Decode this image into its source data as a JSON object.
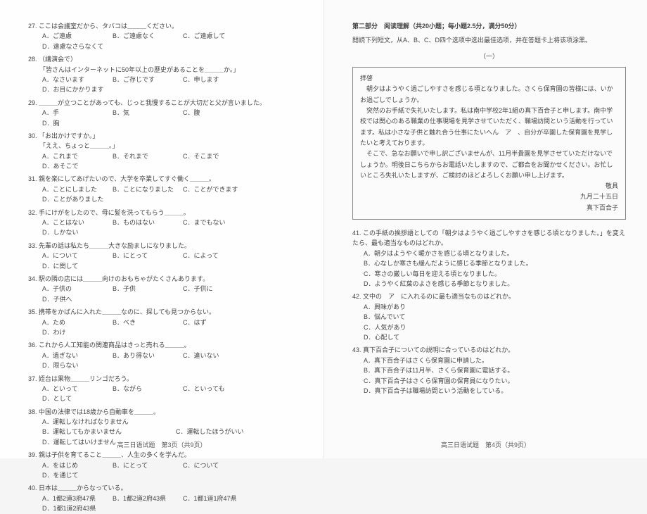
{
  "left": {
    "questions": [
      {
        "num": "27.",
        "stem": "ここは会議室だから、タバコは＿＿＿ください。",
        "opts": [
          "A．ご遠慮",
          "B．ご遠慮なく",
          "C．ご遠慮して",
          "D．遠慮なさらなくて"
        ]
      },
      {
        "num": "28.",
        "stem": "（講演会で）",
        "line2": "「皆さんはインターネットに50年以上の歴史があることを＿＿＿か。」",
        "opts": [
          "A．なさいます",
          "B．ご存じです",
          "C．申します",
          "D．お目にかかります"
        ]
      },
      {
        "num": "29.",
        "stem": "＿＿＿が立つことがあっても、じっと我慢することが大切だと父が言いました。",
        "opts": [
          "A．手",
          "B．気",
          "C．腹",
          "D．胸"
        ]
      },
      {
        "num": "30.",
        "stem": "「お出かけですか。」",
        "line2": "「ええ、ちょっと＿＿＿。」",
        "opts": [
          "A．これまで",
          "B．それまで",
          "C．そこまで",
          "D．あそこで"
        ]
      },
      {
        "num": "31.",
        "stem": "親を楽にしてあげたいので、大学を卒業してすぐ働く＿＿＿。",
        "opts": [
          "A．ことにしました",
          "B．ことになりました",
          "C．ことができます",
          "D．ことがありました"
        ]
      },
      {
        "num": "32.",
        "stem": "手にけがをしたので、母に髪を洗ってもらう＿＿＿。",
        "opts": [
          "A．ことはない",
          "B．ものはない",
          "C．までもない",
          "D．しかない"
        ]
      },
      {
        "num": "33.",
        "stem": "先輩の話は私たち＿＿＿大きな励ましになりました。",
        "opts": [
          "A．について",
          "B．にとって",
          "C．によって",
          "D．に関して"
        ]
      },
      {
        "num": "34.",
        "stem": "駅の隣の店には＿＿＿向けのおもちゃがたくさんあります。",
        "opts": [
          "A．子供の",
          "B．子供",
          "C．子供に",
          "D．子供へ"
        ]
      },
      {
        "num": "35.",
        "stem": "携帯をかばんに入れた＿＿＿なのに、探しても見つからない。",
        "opts": [
          "A．ため",
          "B．べき",
          "C．はず",
          "D．わけ"
        ]
      },
      {
        "num": "36.",
        "stem": "これから人工知能の関連商品はきっと売れる＿＿＿。",
        "opts": [
          "A．過ぎない",
          "B．あり得ない",
          "C．違いない",
          "D．限らない"
        ]
      },
      {
        "num": "37.",
        "stem": "姪台は果物＿＿＿リンゴだろう。",
        "opts": [
          "A．といって",
          "B．ながら",
          "C．といっても",
          "D．として"
        ]
      },
      {
        "num": "38.",
        "stem": "中国の法律では18歳から自動車を＿＿＿。",
        "opts": [
          "A．運転しなければなりません",
          "B．運転してもかまいません",
          "C．運転したほうがいい",
          "D．運転してはいけません"
        ]
      },
      {
        "num": "39.",
        "stem": "親は子供を育てること＿＿＿、人生の多くを学んだ。",
        "opts": [
          "A．をはじめ",
          "B．にとって",
          "C．について",
          "D．を通じて"
        ]
      },
      {
        "num": "40.",
        "stem": "日本は＿＿＿からなっている。",
        "opts": [
          "A．1都2道3府47県",
          "B．1都2道2府43県",
          "C．1都1道1府47県",
          "D．1都1道2府43県"
        ]
      }
    ],
    "footer": "高三日语试题　第3页（共9页）"
  },
  "right": {
    "section_title": "第二部分　阅读理解（共20小题；每小题2.5分，满分50分）",
    "section_sub": "閲読下列短文，从A、B、C、D四个选项中选出最佳选项，并在答题卡上将该项涂黑。",
    "passage_label": "（一）",
    "passage": {
      "greeting": "拝啓",
      "p1": "朝夕はようやく過ごしやすさを感じる頃となりました。さくら保育園の皆様には、いかお過ごしでしょうか。",
      "p2": "突然のお手紙で失礼いたします。私は南中学校2年1組の真下百合子と申します。南中学校では関心のある職業の仕事現場を見学させていただく、職場訪問という活動を行っています。私は小さな子供と触れ合う仕事にたいへん　ア　、自分が卒園した保育園を見学したいと考えております。",
      "p3": "そこで、急なお願いで申し訳ございませんが、11月半貴園を見学させていただけないでしょうか。明後日こちらからお電話いたしますので、ご都合をお聞かせください。お忙しいところ失礼いたしますが、ご検討のほどよろしくお願い申し上げます。",
      "closing": "敬具",
      "date": "九月二十五日",
      "signature": "真下百合子"
    },
    "questions": [
      {
        "num": "41.",
        "stem": "この手紙の挨拶語としての「朝夕はようやく過ごしやすさを感じる頃となりました。」を変えたら、最も適当なものはどれか。",
        "opts": [
          "A．朝夕はようやく暖かさを感じる頃となりました。",
          "B．心なしか寒さも緩んだように感じる季節となりました。",
          "C．寒さの厳しい毎日を迎える頃となりました。",
          "D．ようやく紅葉のよさを感じる季節となりました。"
        ]
      },
      {
        "num": "42.",
        "stem": "文中の　ア　に入れるのに最も適当なものはどれか。",
        "opts": [
          "A．興味があり",
          "B．悩んでいて",
          "C．人気があり",
          "D．心配して"
        ]
      },
      {
        "num": "43.",
        "stem": "真下百合子についての説明に合っているのはどれか。",
        "opts": [
          "A．真下百合子はさくら保育園に申請した。",
          "B．真下百合子は11月半、さくら保育園に電話する。",
          "C．真下百合子はさくら保育園の保育員になりたい。",
          "D．真下百合子は職場訪問という活動をしている。"
        ]
      }
    ],
    "footer": "高三日语试题　第4页（共9页）"
  }
}
